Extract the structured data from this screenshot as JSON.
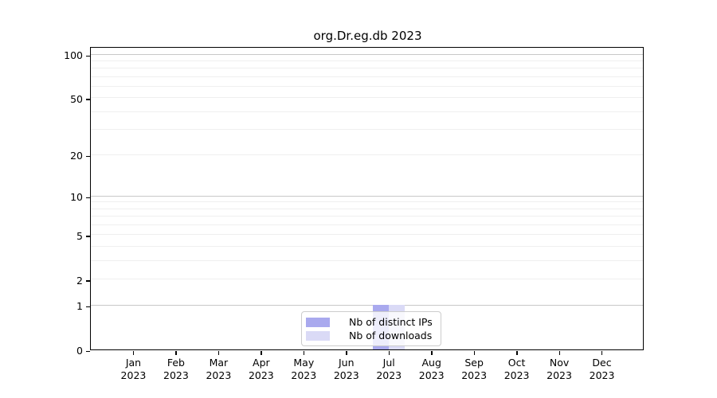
{
  "title": "org.Dr.eg.db 2023",
  "colors": {
    "distinct_ips": "#a9a9ee",
    "downloads": "#dadaf6",
    "grid_light": "#efefef",
    "grid_major": "#c8c8c8",
    "axis": "#000000",
    "legend_border": "#cccccc"
  },
  "legend": {
    "items": [
      {
        "label": "Nb of distinct IPs",
        "color": "#a9a9ee"
      },
      {
        "label": "Nb of downloads",
        "color": "#dadaf6"
      }
    ]
  },
  "y_axis": {
    "tick_values": [
      0,
      1,
      2,
      5,
      10,
      20,
      50,
      100
    ],
    "tick_labels": [
      "0",
      "1",
      "2",
      "5",
      "10",
      "20",
      "50",
      "100"
    ],
    "grid_light_values": [
      2,
      3,
      4,
      5,
      6,
      7,
      8,
      9,
      20,
      30,
      40,
      50,
      60,
      70,
      80,
      90
    ],
    "grid_major_values": [
      1,
      10,
      100
    ]
  },
  "x_axis": {
    "months": [
      {
        "line1": "Jan",
        "line2": "2023"
      },
      {
        "line1": "Feb",
        "line2": "2023"
      },
      {
        "line1": "Mar",
        "line2": "2023"
      },
      {
        "line1": "Apr",
        "line2": "2023"
      },
      {
        "line1": "May",
        "line2": "2023"
      },
      {
        "line1": "Jun",
        "line2": "2023"
      },
      {
        "line1": "Jul",
        "line2": "2023"
      },
      {
        "line1": "Aug",
        "line2": "2023"
      },
      {
        "line1": "Sep",
        "line2": "2023"
      },
      {
        "line1": "Oct",
        "line2": "2023"
      },
      {
        "line1": "Nov",
        "line2": "2023"
      },
      {
        "line1": "Dec",
        "line2": "2023"
      }
    ]
  },
  "chart_data": {
    "type": "bar",
    "title": "org.Dr.eg.db 2023",
    "categories": [
      "Jan 2023",
      "Feb 2023",
      "Mar 2023",
      "Apr 2023",
      "May 2023",
      "Jun 2023",
      "Jul 2023",
      "Aug 2023",
      "Sep 2023",
      "Oct 2023",
      "Nov 2023",
      "Dec 2023"
    ],
    "series": [
      {
        "name": "Nb of distinct IPs",
        "color": "#a9a9ee",
        "values": [
          0,
          0,
          0,
          0,
          0,
          0,
          1,
          0,
          0,
          0,
          0,
          0
        ]
      },
      {
        "name": "Nb of downloads",
        "color": "#dadaf6",
        "values": [
          0,
          0,
          0,
          0,
          0,
          0,
          1,
          0,
          0,
          0,
          0,
          0
        ]
      }
    ],
    "xlabel": "",
    "ylabel": "",
    "y_scale": "log1p",
    "ylim": [
      0,
      100
    ],
    "y_ticks": [
      0,
      1,
      2,
      5,
      10,
      20,
      50,
      100
    ],
    "grid": true,
    "legend_position": "bottom-center-inside"
  }
}
